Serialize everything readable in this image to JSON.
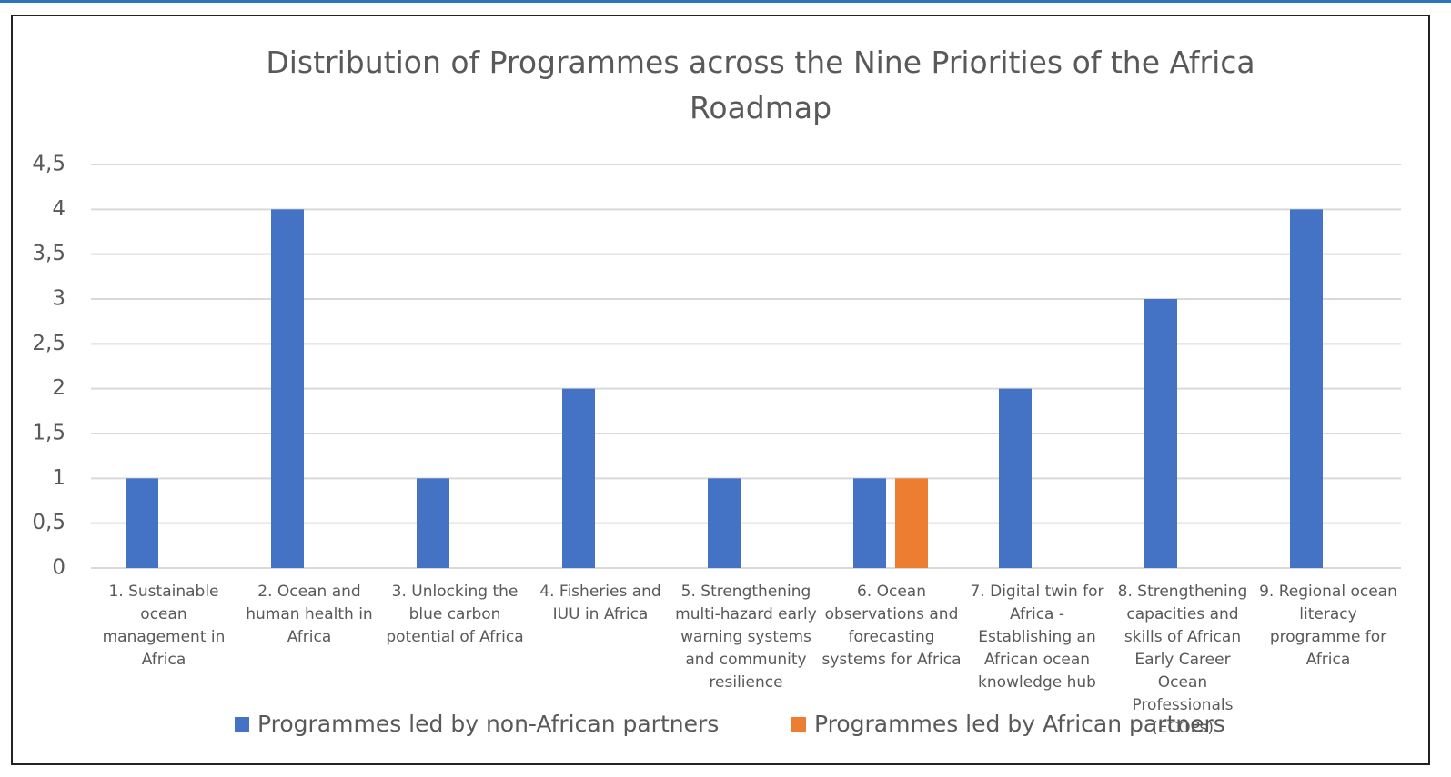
{
  "chart_data": {
    "type": "bar",
    "title": "Distribution of Programmes across the Nine Priorities of the Africa Roadmap",
    "categories": [
      "1. Sustainable ocean management in Africa",
      "2. Ocean and human health in Africa",
      "3. Unlocking the blue carbon potential of Africa",
      "4. Fisheries and IUU in Africa",
      "5. Strengthening multi-hazard early warning systems and community resilience",
      "6. Ocean observations and forecasting systems for Africa",
      "7. Digital twin for Africa - Establishing an African ocean knowledge hub",
      "8. Strengthening capacities and skills of African Early Career Ocean Professionals (ECOPs)",
      "9. Regional ocean literacy programme for Africa"
    ],
    "series": [
      {
        "name": "Programmes led by non-African partners",
        "color": "#4472c4",
        "values": [
          1,
          4,
          1,
          2,
          1,
          1,
          2,
          3,
          4
        ]
      },
      {
        "name": "Programmes led by African partners",
        "color": "#ed7d31",
        "values": [
          0,
          0,
          0,
          0,
          0,
          1,
          0,
          0,
          0
        ]
      }
    ],
    "ylim": [
      0,
      4.5
    ],
    "yticks": [
      0,
      {
        "value": 0.5,
        "label": "0,5"
      },
      1,
      {
        "value": 1.5,
        "label": "1,5"
      },
      2,
      {
        "value": 2.5,
        "label": "2,5"
      },
      3,
      {
        "value": 3.5,
        "label": "3,5"
      },
      4,
      {
        "value": 4.5,
        "label": "4,5"
      }
    ],
    "grid": true,
    "legend": "bottom"
  }
}
